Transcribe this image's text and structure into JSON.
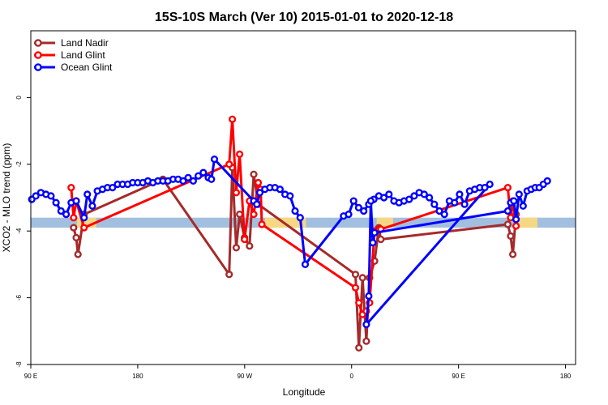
{
  "chart_data": {
    "type": "line",
    "title": "15S-10S March (Ver 10)   2015-01-01 to 2020-12-18",
    "xlabel": "Longitude",
    "ylabel": "XCO2 - MLO trend (ppm)",
    "xlim": [
      -90,
      180
    ],
    "ylim": [
      -8,
      2
    ],
    "x_ticks": [
      {
        "value": -90,
        "label": "90 E"
      },
      {
        "value": -37,
        "label": "180"
      },
      {
        "value": 16,
        "label": "90 W"
      },
      {
        "value": 69,
        "label": "0"
      },
      {
        "value": 122,
        "label": "90 E"
      },
      {
        "value": 175,
        "label": "180"
      }
    ],
    "y_ticks": [
      {
        "value": 0,
        "label": "0"
      },
      {
        "value": -2,
        "label": "-2"
      },
      {
        "value": -4,
        "label": "-4"
      },
      {
        "value": -6,
        "label": "-6"
      },
      {
        "value": -8,
        "label": "-8"
      }
    ],
    "reference_band": {
      "y_low": -3.9,
      "y_high": -3.6,
      "color": "#a3bfdf",
      "highlight_color": "#ffd97a"
    },
    "legend": {
      "placement": "top-left"
    },
    "series": [
      {
        "name": "Land Nadir",
        "color": "#a52a2a",
        "points": [
          [
            -68.8,
            -3.9
          ],
          [
            -67.5,
            -4.2
          ],
          [
            -66.6,
            -4.7
          ],
          [
            -63.6,
            -3.5
          ],
          [
            -24.5,
            -2.45
          ],
          [
            8.3,
            -5.3
          ],
          [
            9.9,
            -2.1
          ],
          [
            11.8,
            -4.5
          ],
          [
            13.5,
            -3.5
          ],
          [
            15.9,
            -4.2
          ],
          [
            18.4,
            -4.45
          ],
          [
            20.5,
            -2.3
          ],
          [
            22.7,
            -3.2
          ],
          [
            70.9,
            -5.3
          ],
          [
            72.6,
            -7.5
          ],
          [
            74.4,
            -5.4
          ],
          [
            76.3,
            -7.3
          ],
          [
            77.9,
            -5.4
          ],
          [
            80.4,
            -4.9
          ],
          [
            82.5,
            -3.9
          ],
          [
            83.5,
            -4.25
          ],
          [
            146.4,
            -3.8
          ],
          [
            147.8,
            -4.15
          ],
          [
            148.9,
            -4.7
          ],
          [
            150.5,
            -3.5
          ]
        ]
      },
      {
        "name": "Land Glint",
        "color": "#ff0000",
        "points": [
          [
            -70,
            -2.7
          ],
          [
            -68.8,
            -3.6
          ],
          [
            -67.5,
            -3.1
          ],
          [
            -63.6,
            -3.9
          ],
          [
            8.3,
            -2.0
          ],
          [
            9.9,
            -0.65
          ],
          [
            11.8,
            -2.85
          ],
          [
            13.5,
            -1.7
          ],
          [
            15.9,
            -4.25
          ],
          [
            18.4,
            -3.1
          ],
          [
            20.5,
            -3.5
          ],
          [
            22.7,
            -2.55
          ],
          [
            23.9,
            -2.75
          ],
          [
            24.5,
            -3.8
          ],
          [
            70.9,
            -5.7
          ],
          [
            72.6,
            -6.15
          ],
          [
            74.4,
            -6.5
          ],
          [
            76.3,
            -6.4
          ],
          [
            77.9,
            -6.15
          ],
          [
            80.4,
            -4.0
          ],
          [
            82.5,
            -3.95
          ],
          [
            83.5,
            -3.95
          ],
          [
            146.4,
            -2.7
          ],
          [
            147.8,
            -3.6
          ],
          [
            148.9,
            -3.1
          ],
          [
            150.5,
            -3.85
          ]
        ]
      },
      {
        "name": "Ocean Glint",
        "color": "#0000ff",
        "points": [
          [
            -89.5,
            -3.05
          ],
          [
            -87.5,
            -2.95
          ],
          [
            -85,
            -2.85
          ],
          [
            -82.5,
            -2.9
          ],
          [
            -80,
            -2.95
          ],
          [
            -77.5,
            -3.15
          ],
          [
            -75,
            -3.4
          ],
          [
            -72.5,
            -3.5
          ],
          [
            -70,
            -3.15
          ],
          [
            -67.5,
            -3.1
          ],
          [
            -63.6,
            -3.6
          ],
          [
            -62,
            -2.9
          ],
          [
            -59.5,
            -3.25
          ],
          [
            -57,
            -2.8
          ],
          [
            -54.5,
            -2.75
          ],
          [
            -52,
            -2.7
          ],
          [
            -49.5,
            -2.7
          ],
          [
            -47,
            -2.6
          ],
          [
            -44.5,
            -2.6
          ],
          [
            -42,
            -2.6
          ],
          [
            -39.5,
            -2.55
          ],
          [
            -37,
            -2.55
          ],
          [
            -34.5,
            -2.55
          ],
          [
            -32,
            -2.5
          ],
          [
            -29.5,
            -2.55
          ],
          [
            -27,
            -2.5
          ],
          [
            -24.5,
            -2.5
          ],
          [
            -22,
            -2.5
          ],
          [
            -19.5,
            -2.45
          ],
          [
            -17,
            -2.45
          ],
          [
            -14.5,
            -2.5
          ],
          [
            -12,
            -2.4
          ],
          [
            -9.5,
            -2.5
          ],
          [
            -7,
            -2.35
          ],
          [
            -4.5,
            -2.25
          ],
          [
            -2,
            -2.4
          ],
          [
            -0.5,
            -2.45
          ],
          [
            1,
            -1.85
          ],
          [
            20.5,
            -3.1
          ],
          [
            22,
            -3.2
          ],
          [
            23.5,
            -2.85
          ],
          [
            26,
            -2.75
          ],
          [
            28.5,
            -2.7
          ],
          [
            31,
            -2.7
          ],
          [
            33.5,
            -2.75
          ],
          [
            36,
            -2.9
          ],
          [
            38.5,
            -2.95
          ],
          [
            41,
            -3.4
          ],
          [
            43.5,
            -3.6
          ],
          [
            46,
            -5.0
          ],
          [
            65,
            -3.55
          ],
          [
            67.5,
            -3.5
          ],
          [
            70,
            -3.1
          ],
          [
            72.5,
            -3.3
          ],
          [
            75,
            -3.4
          ],
          [
            77.5,
            -3.2
          ],
          [
            80,
            -3.05
          ],
          [
            82.5,
            -2.95
          ],
          [
            85,
            -3.0
          ],
          [
            87.5,
            -2.9
          ],
          [
            90,
            -3.1
          ],
          [
            92.5,
            -3.15
          ],
          [
            95,
            -3.1
          ],
          [
            97.5,
            -3.05
          ],
          [
            100,
            -2.95
          ],
          [
            102.5,
            -2.85
          ],
          [
            105,
            -2.9
          ],
          [
            107.5,
            -3.0
          ],
          [
            110,
            -3.2
          ],
          [
            112.5,
            -3.4
          ],
          [
            115,
            -3.5
          ],
          [
            117.5,
            -3.1
          ],
          [
            120,
            -3.15
          ],
          [
            122.5,
            -2.9
          ],
          [
            125,
            -3.2
          ],
          [
            127.5,
            -2.8
          ],
          [
            130,
            -2.75
          ],
          [
            132.5,
            -2.7
          ],
          [
            135,
            -2.7
          ],
          [
            137.5,
            -2.6
          ],
          [
            76.3,
            -6.8
          ],
          [
            77.5,
            -5.95
          ],
          [
            78.5,
            -3.1
          ],
          [
            79.5,
            -4.35
          ],
          [
            80.4,
            -4.05
          ],
          [
            146.4,
            -3.4
          ],
          [
            147.8,
            -3.15
          ],
          [
            149.4,
            -3.1
          ],
          [
            150.5,
            -3.65
          ],
          [
            152,
            -2.9
          ],
          [
            154,
            -3.25
          ],
          [
            156,
            -2.8
          ],
          [
            158,
            -2.75
          ],
          [
            160,
            -2.7
          ],
          [
            162,
            -2.7
          ],
          [
            164,
            -2.6
          ],
          [
            166,
            -2.5
          ]
        ]
      }
    ]
  }
}
